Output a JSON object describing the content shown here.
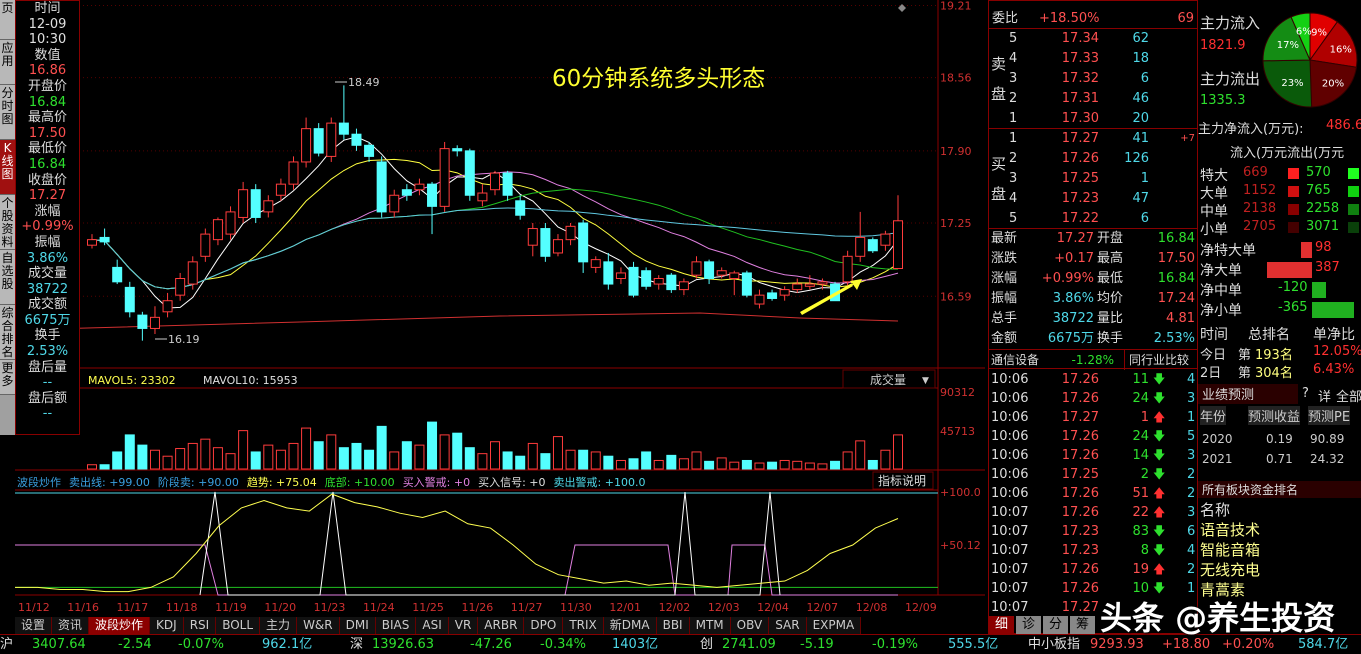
{
  "left_tabs": [
    "页",
    "应用",
    "分时图",
    "K线图",
    "个股资料",
    "自选股",
    "综合排名",
    "更多"
  ],
  "info": [
    {
      "label": "时间",
      "value": "12-09",
      "value2": "10:30",
      "color": "#e0e0e0"
    },
    {
      "label": "数值",
      "value": "16.86",
      "color": "#ff5050"
    },
    {
      "label": "开盘价",
      "value": "16.84",
      "color": "#2ee02e"
    },
    {
      "label": "最高价",
      "value": "17.50",
      "color": "#ff5050"
    },
    {
      "label": "最低价",
      "value": "16.84",
      "color": "#2ee02e"
    },
    {
      "label": "收盘价",
      "value": "17.27",
      "color": "#ff5050"
    },
    {
      "label": "涨幅",
      "value": "+0.99%",
      "color": "#ff5050"
    },
    {
      "label": "振幅",
      "value": "3.86%",
      "color": "#4fd8e8"
    },
    {
      "label": "成交量",
      "value": "38722",
      "color": "#4fd8e8"
    },
    {
      "label": "成交额",
      "value": "6675万",
      "color": "#4fd8e8"
    },
    {
      "label": "换手",
      "value": "2.53%",
      "color": "#4fd8e8"
    },
    {
      "label": "盘后量",
      "value": "--",
      "color": "#4fd8e8"
    },
    {
      "label": "盘后额",
      "value": "--",
      "color": "#4fd8e8"
    }
  ],
  "chart": {
    "annotation": "60分钟系统多头形态",
    "high_label": "18.49",
    "low_label": "16.19",
    "price_ticks": [
      "19.21",
      "18.56",
      "17.90",
      "17.25",
      "16.59"
    ],
    "price_tick_values": [
      19.21,
      18.56,
      17.9,
      17.25,
      16.59
    ],
    "dates": [
      "11/12",
      "11/16",
      "11/17",
      "11/18",
      "11/19",
      "11/20",
      "11/23",
      "11/24",
      "11/25",
      "11/26",
      "11/27",
      "11/30",
      "12/01",
      "12/02",
      "12/03",
      "12/04",
      "12/07",
      "12/08",
      "12/09"
    ],
    "candles": [
      [
        17.05,
        17.15,
        17.02,
        17.1
      ],
      [
        17.12,
        17.2,
        17.05,
        17.08
      ],
      [
        16.85,
        16.92,
        16.7,
        16.72
      ],
      [
        16.67,
        16.72,
        16.4,
        16.45
      ],
      [
        16.42,
        16.45,
        16.19,
        16.3
      ],
      [
        16.3,
        16.5,
        16.25,
        16.4
      ],
      [
        16.45,
        16.62,
        16.4,
        16.55
      ],
      [
        16.6,
        16.8,
        16.55,
        16.75
      ],
      [
        16.7,
        16.95,
        16.65,
        16.9
      ],
      [
        16.95,
        17.2,
        16.9,
        17.15
      ],
      [
        17.1,
        17.3,
        17.05,
        17.28
      ],
      [
        17.15,
        17.4,
        17.1,
        17.35
      ],
      [
        17.3,
        17.62,
        17.25,
        17.55
      ],
      [
        17.55,
        17.6,
        17.25,
        17.3
      ],
      [
        17.35,
        17.5,
        17.3,
        17.45
      ],
      [
        17.5,
        17.65,
        17.45,
        17.6
      ],
      [
        17.6,
        17.85,
        17.55,
        17.8
      ],
      [
        17.8,
        18.2,
        17.75,
        18.1
      ],
      [
        18.1,
        18.15,
        17.85,
        17.88
      ],
      [
        17.85,
        18.2,
        17.8,
        18.15
      ],
      [
        18.15,
        18.49,
        18.0,
        18.05
      ],
      [
        18.05,
        18.1,
        17.9,
        17.95
      ],
      [
        17.95,
        17.98,
        17.8,
        17.85
      ],
      [
        17.8,
        17.85,
        17.3,
        17.35
      ],
      [
        17.35,
        17.55,
        17.3,
        17.5
      ],
      [
        17.55,
        17.6,
        17.45,
        17.5
      ],
      [
        17.55,
        17.65,
        17.5,
        17.6
      ],
      [
        17.6,
        17.62,
        17.15,
        17.4
      ],
      [
        17.4,
        17.98,
        17.35,
        17.92
      ],
      [
        17.92,
        17.95,
        17.85,
        17.9
      ],
      [
        17.9,
        17.92,
        17.45,
        17.5
      ],
      [
        17.45,
        17.6,
        17.4,
        17.52
      ],
      [
        17.55,
        17.72,
        17.5,
        17.7
      ],
      [
        17.7,
        17.72,
        17.45,
        17.5
      ],
      [
        17.45,
        17.5,
        17.28,
        17.32
      ],
      [
        17.05,
        17.25,
        16.95,
        17.2
      ],
      [
        17.2,
        17.25,
        16.9,
        16.95
      ],
      [
        16.98,
        17.15,
        16.95,
        17.1
      ],
      [
        17.1,
        17.25,
        17.05,
        17.22
      ],
      [
        17.25,
        17.28,
        16.8,
        16.9
      ],
      [
        16.85,
        16.95,
        16.8,
        16.92
      ],
      [
        16.9,
        16.98,
        16.65,
        16.7
      ],
      [
        16.75,
        16.85,
        16.7,
        16.8
      ],
      [
        16.85,
        16.9,
        16.58,
        16.6
      ],
      [
        16.82,
        16.85,
        16.65,
        16.68
      ],
      [
        16.7,
        16.78,
        16.65,
        16.75
      ],
      [
        16.78,
        16.8,
        16.62,
        16.65
      ],
      [
        16.65,
        16.75,
        16.6,
        16.72
      ],
      [
        16.78,
        16.95,
        16.75,
        16.9
      ],
      [
        16.9,
        16.92,
        16.7,
        16.75
      ],
      [
        16.78,
        16.85,
        16.75,
        16.82
      ],
      [
        16.75,
        16.82,
        16.6,
        16.8
      ],
      [
        16.8,
        16.82,
        16.58,
        16.6
      ],
      [
        16.52,
        16.65,
        16.48,
        16.6
      ],
      [
        16.62,
        16.65,
        16.55,
        16.57
      ],
      [
        16.6,
        16.68,
        16.55,
        16.65
      ],
      [
        16.65,
        16.75,
        16.62,
        16.7
      ],
      [
        16.68,
        16.78,
        16.65,
        16.7
      ],
      [
        16.7,
        16.75,
        16.65,
        16.72
      ],
      [
        16.7,
        16.72,
        16.55,
        16.55
      ],
      [
        16.72,
        17.0,
        16.68,
        16.95
      ],
      [
        16.95,
        17.35,
        16.9,
        17.12
      ],
      [
        17.1,
        17.12,
        16.98,
        17.0
      ],
      [
        17.05,
        17.18,
        17.0,
        17.15
      ],
      [
        16.84,
        17.5,
        16.84,
        17.27
      ]
    ],
    "volume_header": {
      "mavol5": "MAVOL5: 23302",
      "mavol10": "MAVOL10: 15953",
      "selector": "成交量"
    },
    "volume_ticks": [
      "90312",
      "45713"
    ],
    "volumes": [
      5000,
      5000,
      20000,
      40000,
      28000,
      22000,
      15000,
      24000,
      30000,
      35000,
      25000,
      18000,
      45000,
      20000,
      28000,
      22000,
      30000,
      48000,
      32000,
      40000,
      25000,
      30000,
      22000,
      50000,
      20000,
      32000,
      28000,
      55000,
      40000,
      42000,
      25000,
      18000,
      32000,
      20000,
      15000,
      30000,
      18000,
      38000,
      22000,
      22000,
      20000,
      15000,
      10000,
      12000,
      20000,
      10000,
      16000,
      12000,
      20000,
      9000,
      13000,
      8000,
      10000,
      7000,
      8000,
      10000,
      9000,
      7000,
      6000,
      9000,
      20000,
      33000,
      10000,
      22000,
      40000
    ],
    "indicator_header": [
      {
        "text": "波段炒作",
        "color": "#3aa0e0"
      },
      {
        "text": "卖出线: +99.00",
        "color": "#3aa0e0"
      },
      {
        "text": "阶段卖: +90.00",
        "color": "#3aa0e0"
      },
      {
        "text": "趋势: +75.04",
        "color": "#ffff50"
      },
      {
        "text": "底部: +10.00",
        "color": "#2ee02e"
      },
      {
        "text": "买入警戒: +0",
        "color": "#e080e0"
      },
      {
        "text": "买入信号: +0",
        "color": "#e0e0e0"
      },
      {
        "text": "卖出警戒: +100.0",
        "color": "#4fd8e8"
      }
    ],
    "indicator_button": "指标说明",
    "indicator_ticks": [
      "+100.0",
      "+50.12"
    ],
    "trend_values": [
      10,
      10,
      8,
      8,
      6,
      6,
      10,
      20,
      42,
      68,
      85,
      92,
      85,
      82,
      98,
      90,
      86,
      80,
      76,
      82,
      70,
      66,
      50,
      32,
      22,
      18,
      14,
      16,
      12,
      14,
      12,
      10,
      12,
      14,
      16,
      26,
      42,
      50,
      66,
      75
    ]
  },
  "tabs": [
    "设置",
    "资讯",
    "波段炒作",
    "KDJ",
    "RSI",
    "BOLL",
    "主力",
    "W&R",
    "DMI",
    "BIAS",
    "ASI",
    "VR",
    "ARBR",
    "DPO",
    "TRIX",
    "新DMA",
    "BBI",
    "MTM",
    "OBV",
    "SAR",
    "EXPMA"
  ],
  "active_tab": "波段炒作",
  "quote": {
    "weibi_label": "委比",
    "weibi": "+18.50%",
    "weicha": "69",
    "sell_label": [
      "卖",
      "盘"
    ],
    "buy_label": [
      "买",
      "盘"
    ],
    "sell": [
      [
        "5",
        "17.34",
        "62"
      ],
      [
        "4",
        "17.33",
        "18"
      ],
      [
        "3",
        "17.32",
        "6"
      ],
      [
        "2",
        "17.31",
        "46"
      ],
      [
        "1",
        "17.30",
        "20"
      ]
    ],
    "buy": [
      [
        "1",
        "17.27",
        "41",
        "+7"
      ],
      [
        "2",
        "17.26",
        "126",
        ""
      ],
      [
        "3",
        "17.25",
        "1",
        ""
      ],
      [
        "4",
        "17.23",
        "47",
        ""
      ],
      [
        "5",
        "17.22",
        "6",
        ""
      ]
    ],
    "stats": [
      [
        "最新",
        "17.27",
        "开盘",
        "16.84"
      ],
      [
        "涨跌",
        "+0.17",
        "最高",
        "17.50"
      ],
      [
        "涨幅",
        "+0.99%",
        "最低",
        "16.84"
      ],
      [
        "振幅",
        "3.86%",
        "均价",
        "17.24"
      ],
      [
        "总手",
        "38722",
        "量比",
        "4.81"
      ],
      [
        "金额",
        "6675万",
        "换手",
        "2.53%"
      ]
    ],
    "industry": "通信设备",
    "industry_change": "-1.28%",
    "compare": "同行业比较",
    "ticks": [
      [
        "10:06",
        "17.26",
        "11",
        "down",
        "4"
      ],
      [
        "10:06",
        "17.26",
        "24",
        "down",
        "3"
      ],
      [
        "10:06",
        "17.27",
        "1",
        "up",
        "1"
      ],
      [
        "10:06",
        "17.26",
        "24",
        "down",
        "5"
      ],
      [
        "10:06",
        "17.26",
        "14",
        "down",
        "3"
      ],
      [
        "10:06",
        "17.25",
        "2",
        "down",
        "2"
      ],
      [
        "10:06",
        "17.26",
        "51",
        "up",
        "2"
      ],
      [
        "10:07",
        "17.26",
        "22",
        "up",
        "3"
      ],
      [
        "10:07",
        "17.23",
        "83",
        "down",
        "6"
      ],
      [
        "10:07",
        "17.23",
        "8",
        "down",
        "4"
      ],
      [
        "10:07",
        "17.26",
        "19",
        "up",
        "2"
      ],
      [
        "10:07",
        "17.26",
        "10",
        "down",
        "1"
      ],
      [
        "10:07",
        "17.27",
        "",
        "",
        " "
      ]
    ],
    "bottom_tabs": [
      "细",
      "诊",
      "分",
      "筹"
    ]
  },
  "flow": {
    "inflow_label": "主力流入",
    "inflow": "1821.9",
    "outflow_label": "主力流出",
    "outflow": "1335.3",
    "pie": [
      {
        "pct": 9,
        "label": "9%",
        "color": "#e00000"
      },
      {
        "pct": 16,
        "label": "16%",
        "color": "#b00000"
      },
      {
        "pct": 20,
        "label": "20%",
        "color": "#600000"
      },
      {
        "pct": 23,
        "label": "23%",
        "color": "#0a5a0a"
      },
      {
        "pct": 17,
        "label": "17%",
        "color": "#148c14"
      },
      {
        "pct": 6,
        "label": "6%",
        "color": "#14d014"
      }
    ],
    "net_label": "主力净流入(万元):",
    "net": "486.6",
    "io_header": "流入(万元流出(万元",
    "io": [
      [
        "特大",
        "669",
        "570"
      ],
      [
        "大单",
        "1152",
        "765"
      ],
      [
        "中单",
        "2138",
        "2258"
      ],
      [
        "小单",
        "2705",
        "3071"
      ]
    ],
    "net_rows": [
      [
        "净特大单",
        "98",
        98
      ],
      [
        "净大单",
        "387",
        387
      ],
      [
        "净中单",
        "-120",
        -120
      ],
      [
        "净小单",
        "-365",
        -365
      ]
    ],
    "rank_header": [
      "时间",
      "总排名",
      "单净比"
    ],
    "rank": [
      [
        "今日",
        "第",
        "193名",
        "12.05%"
      ],
      [
        "2日",
        "第",
        "304名",
        "6.43%"
      ]
    ],
    "forecast_title": "业绩预测",
    "forecast_btns": [
      "?",
      "详",
      "全部"
    ],
    "forecast_header": [
      "年份",
      "预测收益",
      "预测PE"
    ],
    "forecast": [
      [
        "2020",
        "0.19",
        "90.89"
      ],
      [
        "2021",
        "0.71",
        "24.32"
      ]
    ],
    "board_title": "所有板块资金排名",
    "board_header": "名称",
    "boards": [
      "语音技术",
      "智能音箱",
      "无线充电",
      "青蒿素"
    ]
  },
  "status": [
    {
      "text": "沪",
      "color": "#e0e0e0"
    },
    {
      "text": "3407.64",
      "color": "#2ee02e"
    },
    {
      "text": "-2.54",
      "color": "#2ee02e"
    },
    {
      "text": "-0.07%",
      "color": "#2ee02e"
    },
    {
      "text": "962.1亿",
      "color": "#4fd8e8"
    },
    {
      "text": "深",
      "color": "#e0e0e0"
    },
    {
      "text": "13926.63",
      "color": "#2ee02e"
    },
    {
      "text": "-47.26",
      "color": "#2ee02e"
    },
    {
      "text": "-0.34%",
      "color": "#2ee02e"
    },
    {
      "text": "1403亿",
      "color": "#4fd8e8"
    },
    {
      "text": "创",
      "color": "#e0e0e0"
    },
    {
      "text": "2741.09",
      "color": "#2ee02e"
    },
    {
      "text": "-5.19",
      "color": "#2ee02e"
    },
    {
      "text": "-0.19%",
      "color": "#2ee02e"
    },
    {
      "text": "555.5亿",
      "color": "#4fd8e8"
    },
    {
      "text": "中小板指",
      "color": "#e0e0e0"
    },
    {
      "text": "9293.93",
      "color": "#ff5050"
    },
    {
      "text": "+18.80",
      "color": "#ff5050"
    },
    {
      "text": "+0.20%",
      "color": "#ff5050"
    },
    {
      "text": "584.7亿",
      "color": "#4fd8e8"
    }
  ],
  "watermark": "头条 @养生投资"
}
